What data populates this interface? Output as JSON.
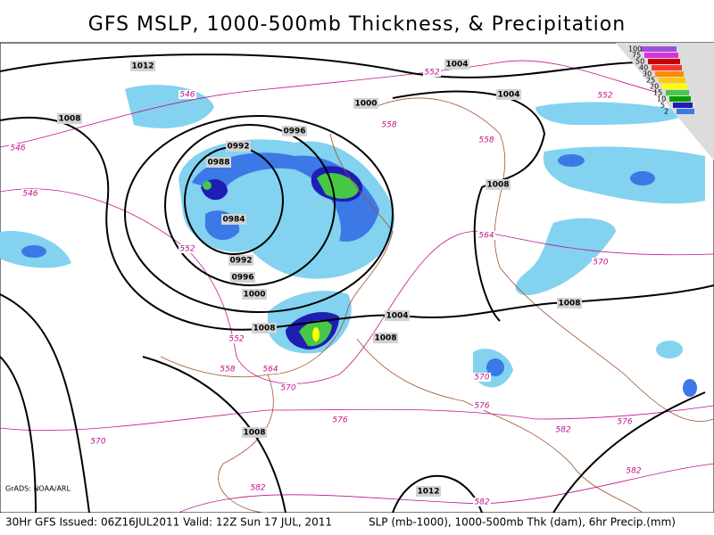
{
  "title": "GFS MSLP, 1000-500mb Thickness, & Precipitation",
  "isobar_labels": [
    "1012",
    "1004",
    "1008",
    "1004",
    "1000",
    "0996",
    "0992",
    "0988",
    "0984",
    "0992",
    "0996",
    "1000",
    "1008",
    "1004",
    "1008",
    "1008",
    "1008",
    "1008",
    "1012"
  ],
  "thickness_labels": [
    "546",
    "546",
    "546",
    "552",
    "552",
    "558",
    "558",
    "564",
    "570",
    "552",
    "552",
    "558",
    "564",
    "570",
    "576",
    "570",
    "570",
    "576",
    "576",
    "582",
    "582",
    "582",
    "582"
  ],
  "legend": {
    "labels": [
      "100",
      "75",
      "50",
      "40",
      "30",
      "25",
      "20",
      "15",
      "10",
      "5",
      "2"
    ]
  },
  "credit": "GrADS: NOAA/ARL",
  "footer": {
    "valid": "30Hr GFS Issued: 06Z16JUL2011  Valid: 12Z Sun 17 JUL, 2011",
    "units": "SLP (mb-1000), 1000-500mb Thk (dam), 6hr Precip.(mm)"
  }
}
